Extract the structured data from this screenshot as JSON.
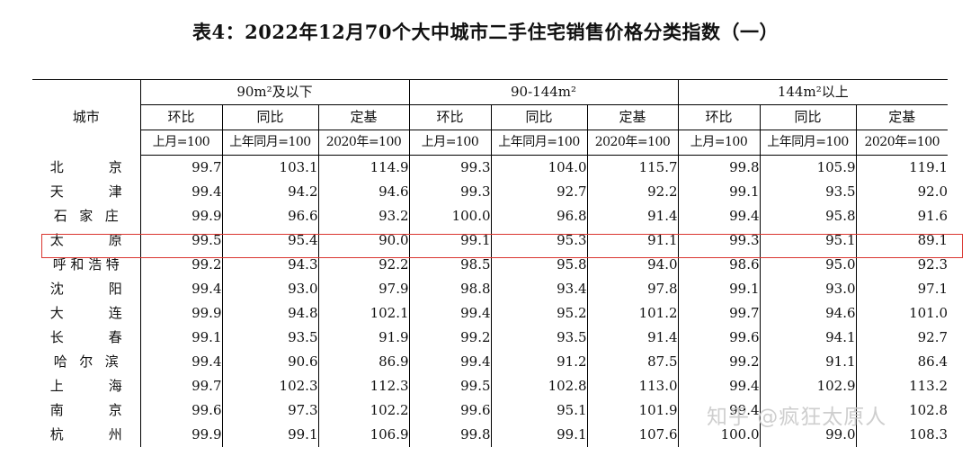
{
  "title": "表4：2022年12月70个大中城市二手住宅销售价格分类指数（一）",
  "header": {
    "city": "城市",
    "groups": [
      "90m²及以下",
      "90-144m²",
      "144m²以上"
    ],
    "sub": [
      "环比",
      "同比",
      "定基"
    ],
    "units": [
      "上月=100",
      "上年同月=100",
      "2020年=100"
    ]
  },
  "rows": [
    {
      "city": "北京",
      "v": [
        "99.7",
        "103.1",
        "114.9",
        "99.3",
        "104.0",
        "115.7",
        "99.8",
        "105.9",
        "119.1"
      ]
    },
    {
      "city": "天津",
      "v": [
        "99.4",
        "94.2",
        "94.6",
        "99.3",
        "92.7",
        "92.2",
        "99.1",
        "93.5",
        "92.0"
      ]
    },
    {
      "city": "石家庄",
      "v": [
        "99.9",
        "96.6",
        "93.2",
        "100.0",
        "96.8",
        "91.4",
        "99.4",
        "95.8",
        "91.6"
      ]
    },
    {
      "city": "太原",
      "v": [
        "99.5",
        "95.4",
        "90.0",
        "99.1",
        "95.3",
        "91.1",
        "99.3",
        "95.1",
        "89.1"
      ]
    },
    {
      "city": "呼和浩特",
      "v": [
        "99.2",
        "94.3",
        "92.2",
        "98.5",
        "95.8",
        "94.0",
        "98.6",
        "95.0",
        "92.3"
      ]
    },
    {
      "city": "沈阳",
      "v": [
        "99.4",
        "93.0",
        "97.9",
        "98.8",
        "93.4",
        "97.8",
        "99.1",
        "93.0",
        "97.1"
      ]
    },
    {
      "city": "大连",
      "v": [
        "99.9",
        "94.8",
        "102.1",
        "99.4",
        "95.2",
        "101.2",
        "99.7",
        "94.6",
        "101.0"
      ]
    },
    {
      "city": "长春",
      "v": [
        "99.1",
        "93.5",
        "91.9",
        "99.2",
        "93.5",
        "91.4",
        "99.6",
        "94.1",
        "92.7"
      ]
    },
    {
      "city": "哈尔滨",
      "v": [
        "99.4",
        "90.6",
        "86.9",
        "99.4",
        "91.2",
        "87.5",
        "99.2",
        "91.1",
        "86.4"
      ]
    },
    {
      "city": "上海",
      "v": [
        "99.7",
        "102.3",
        "112.3",
        "99.5",
        "102.8",
        "113.0",
        "99.4",
        "102.9",
        "113.2"
      ]
    },
    {
      "city": "南京",
      "v": [
        "99.6",
        "97.3",
        "102.2",
        "99.6",
        "95.1",
        "101.9",
        "99.4",
        "",
        "102.8"
      ]
    },
    {
      "city": "杭州",
      "v": [
        "99.9",
        "99.1",
        "106.9",
        "99.8",
        "99.1",
        "107.6",
        "100.0",
        "99.0",
        "108.3"
      ]
    }
  ],
  "watermark": "知乎 @疯狂太原人",
  "highlight_color": "#d9352f"
}
